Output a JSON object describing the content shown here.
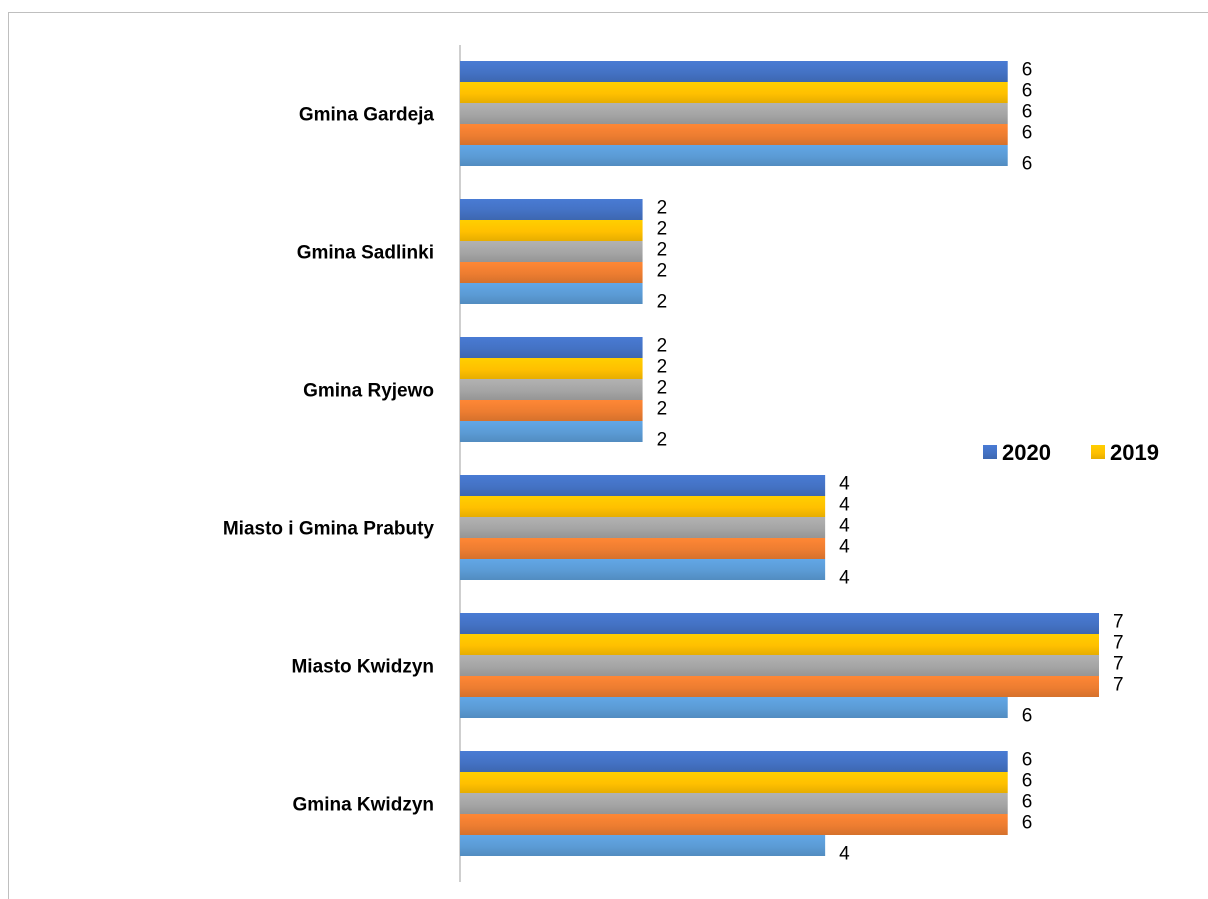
{
  "chart_data": {
    "type": "bar",
    "orientation": "horizontal",
    "categories": [
      "Gmina Gardeja",
      "Gmina Sadlinki",
      "Gmina Ryjewo",
      "Miasto i Gmina Prabuty",
      "Miasto Kwidzyn",
      "Gmina Kwidzyn"
    ],
    "series": [
      {
        "name": "2020",
        "color": "#4472c4",
        "values": [
          6,
          2,
          2,
          4,
          7,
          6
        ]
      },
      {
        "name": "2019",
        "color": "#ffc000",
        "values": [
          6,
          2,
          2,
          4,
          7,
          6
        ]
      },
      {
        "color": "#a5a5a5",
        "values": [
          6,
          2,
          2,
          4,
          7,
          6
        ]
      },
      {
        "color": "#ed7d31",
        "values": [
          6,
          2,
          2,
          4,
          7,
          6
        ]
      },
      {
        "color": "#5b9bd5",
        "values": [
          6,
          2,
          2,
          4,
          6,
          4
        ]
      }
    ],
    "xlim": [
      0,
      7
    ],
    "data_labels": true,
    "grid": false,
    "legend": {
      "position": "right",
      "entries": [
        "2020",
        "2019"
      ]
    }
  }
}
